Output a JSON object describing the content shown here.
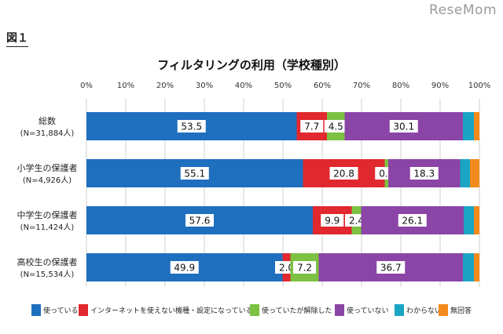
{
  "watermark": "ReseMom",
  "figure_label": "図１",
  "chart_data": {
    "type": "bar",
    "orientation": "horizontal",
    "stacked": true,
    "title": "フィルタリングの利用（学校種別）",
    "xlim": [
      0,
      100
    ],
    "x_ticks": [
      "0%",
      "10%",
      "20%",
      "30%",
      "40%",
      "50%",
      "60%",
      "70%",
      "80%",
      "90%",
      "100%"
    ],
    "grid": true,
    "legend_position": "bottom",
    "categories": [
      {
        "name": "総数",
        "n": "(N=31,884人)"
      },
      {
        "name": "小学生の保護者",
        "n": "(N=4,926人)"
      },
      {
        "name": "中学生の保護者",
        "n": "(N=11,424人)"
      },
      {
        "name": "高校生の保護者",
        "n": "(N=15,534人)"
      }
    ],
    "series": [
      {
        "name": "使っている",
        "color": "#1f6fbf",
        "values": [
          53.5,
          55.1,
          57.6,
          49.9
        ],
        "labels": [
          "53.5",
          "55.1",
          "57.6",
          "49.9"
        ]
      },
      {
        "name": "インターネットを使えない機種・設定になっている",
        "color": "#e0282e",
        "values": [
          7.7,
          20.8,
          9.9,
          2.0
        ],
        "labels": [
          "7.7",
          "20.8",
          "9.9",
          "2.0"
        ]
      },
      {
        "name": "使っていたが解除した",
        "color": "#7cc142",
        "values": [
          4.5,
          0.9,
          2.4,
          7.2
        ],
        "labels": [
          "4.5",
          "0.9",
          "2.4",
          "7.2"
        ]
      },
      {
        "name": "使っていない",
        "color": "#8b45a6",
        "values": [
          30.1,
          18.3,
          26.1,
          36.7
        ],
        "labels": [
          "30.1",
          "18.3",
          "26.1",
          "36.7"
        ]
      },
      {
        "name": "わからない",
        "color": "#1aa5c4",
        "values": [
          2.8,
          2.5,
          2.6,
          2.8
        ],
        "labels": [
          "",
          "",
          "",
          ""
        ]
      },
      {
        "name": "無回答",
        "color": "#f28a1c",
        "values": [
          1.4,
          2.4,
          1.4,
          1.4
        ],
        "labels": [
          "",
          "",
          "",
          ""
        ]
      }
    ]
  }
}
